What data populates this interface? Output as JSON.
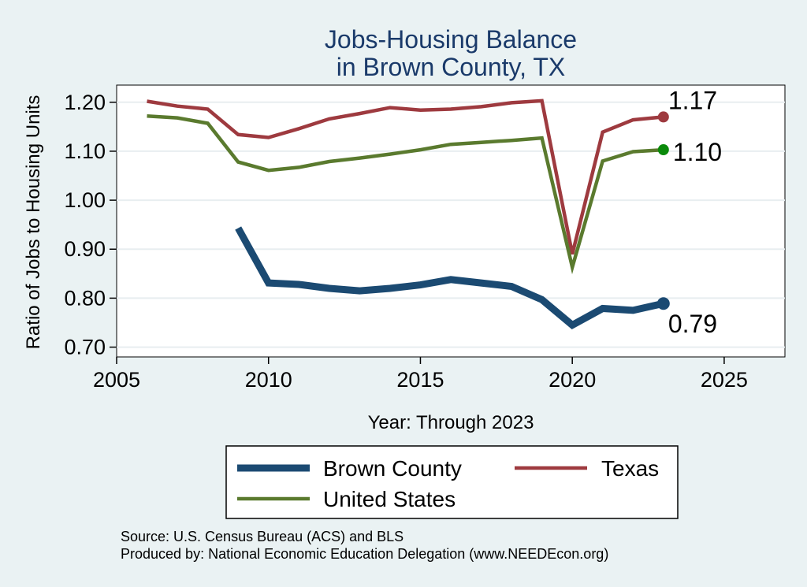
{
  "chart_data": {
    "type": "line",
    "title": [
      "Jobs-Housing Balance",
      "in Brown County, TX"
    ],
    "xlabel": "Year: Through 2023",
    "ylabel": "Ratio of Jobs to Housing Units",
    "xlim": [
      2005,
      2027
    ],
    "ylim": [
      0.68,
      1.235
    ],
    "x_ticks": [
      2005,
      2010,
      2015,
      2020,
      2025
    ],
    "y_ticks": [
      0.7,
      0.8,
      0.9,
      1.0,
      1.1,
      1.2
    ],
    "y_tick_labels": [
      "0.70",
      "0.80",
      "0.90",
      "1.00",
      "1.10",
      "1.20"
    ],
    "grid": true,
    "series": [
      {
        "name": "Brown County",
        "color": "#1b4a72",
        "x": [
          2009,
          2010,
          2011,
          2012,
          2013,
          2014,
          2015,
          2016,
          2017,
          2018,
          2019,
          2020,
          2021,
          2022,
          2023
        ],
        "values": [
          0.943,
          0.831,
          0.828,
          0.82,
          0.815,
          0.82,
          0.827,
          0.838,
          0.831,
          0.824,
          0.797,
          0.745,
          0.779,
          0.775,
          0.789
        ],
        "end_label": "0.79"
      },
      {
        "name": "Texas",
        "color": "#9e3a3f",
        "x": [
          2006,
          2007,
          2008,
          2009,
          2010,
          2011,
          2012,
          2013,
          2014,
          2015,
          2016,
          2017,
          2018,
          2019,
          2020,
          2021,
          2022,
          2023
        ],
        "values": [
          1.202,
          1.192,
          1.186,
          1.134,
          1.128,
          1.146,
          1.166,
          1.177,
          1.189,
          1.184,
          1.186,
          1.191,
          1.199,
          1.203,
          0.89,
          1.139,
          1.164,
          1.17
        ],
        "end_label": "1.17"
      },
      {
        "name": "United States",
        "color": "#5a7a2e",
        "x": [
          2006,
          2007,
          2008,
          2009,
          2010,
          2011,
          2012,
          2013,
          2014,
          2015,
          2016,
          2017,
          2018,
          2019,
          2020,
          2021,
          2022,
          2023
        ],
        "values": [
          1.172,
          1.168,
          1.157,
          1.078,
          1.061,
          1.067,
          1.079,
          1.086,
          1.094,
          1.103,
          1.114,
          1.118,
          1.122,
          1.127,
          0.863,
          1.08,
          1.099,
          1.103
        ],
        "end_label": "1.10",
        "end_marker_color": "#0a8a0a"
      }
    ],
    "legend": {
      "placement": "bottom",
      "entries": [
        "Brown County",
        "Texas",
        "United States"
      ]
    },
    "notes": [
      "Source: U.S. Census Bureau (ACS) and BLS",
      "Produced by: National Economic Education Delegation (www.NEEDEcon.org)"
    ]
  }
}
